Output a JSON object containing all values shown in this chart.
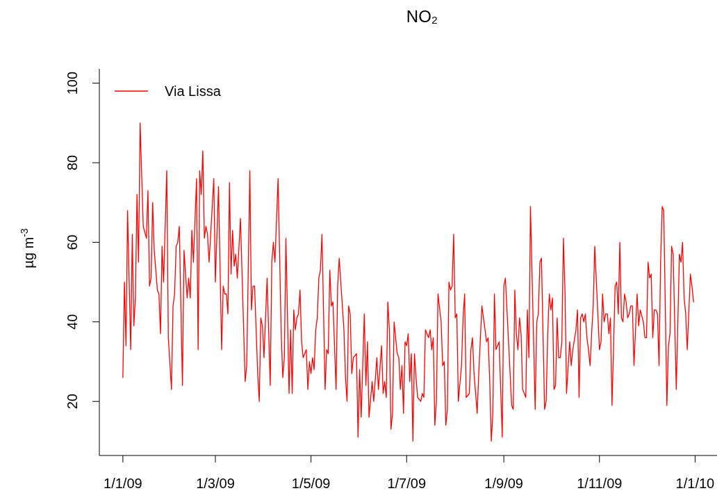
{
  "chart_data": {
    "type": "line",
    "title": "NO₂",
    "ylabel": "µg m$^{-3}$",
    "x": [
      "2009-01-01",
      "2009-01-02",
      "2009-01-03",
      "2009-01-04",
      "2009-01-06",
      "2009-01-07",
      "2009-01-08",
      "2009-01-09",
      "2009-01-10",
      "2009-01-11",
      "2009-01-12",
      "2009-01-14",
      "2009-01-16",
      "2009-01-17",
      "2009-01-18",
      "2009-01-19",
      "2009-01-20",
      "2009-01-21",
      "2009-01-23",
      "2009-01-24",
      "2009-01-25",
      "2009-01-26",
      "2009-01-27",
      "2009-01-29",
      "2009-01-30",
      "2009-02-01",
      "2009-02-02",
      "2009-02-03",
      "2009-02-04",
      "2009-02-05",
      "2009-02-06",
      "2009-02-08",
      "2009-02-09",
      "2009-02-11",
      "2009-02-12",
      "2009-02-13",
      "2009-02-14",
      "2009-02-15",
      "2009-02-17",
      "2009-02-18",
      "2009-02-19",
      "2009-02-20",
      "2009-02-21",
      "2009-02-22",
      "2009-02-23",
      "2009-02-24",
      "2009-02-25",
      "2009-02-28",
      "2009-03-01",
      "2009-03-03",
      "2009-03-05",
      "2009-03-06",
      "2009-03-07",
      "2009-03-08",
      "2009-03-09",
      "2009-03-10",
      "2009-03-11",
      "2009-03-12",
      "2009-03-13",
      "2009-03-14",
      "2009-03-15",
      "2009-03-17",
      "2009-03-20",
      "2009-03-21",
      "2009-03-23",
      "2009-03-24",
      "2009-03-25",
      "2009-03-26",
      "2009-03-28",
      "2009-03-29",
      "2009-03-30",
      "2009-03-31",
      "2009-04-01",
      "2009-04-03",
      "2009-04-05",
      "2009-04-06",
      "2009-04-07",
      "2009-04-08",
      "2009-04-10",
      "2009-04-12",
      "2009-04-13",
      "2009-04-14",
      "2009-04-15",
      "2009-04-17",
      "2009-04-18",
      "2009-04-19",
      "2009-04-20",
      "2009-04-21",
      "2009-04-22",
      "2009-04-23",
      "2009-04-24",
      "2009-04-25",
      "2009-04-26",
      "2009-04-28",
      "2009-04-29",
      "2009-04-30",
      "2009-05-01",
      "2009-05-02",
      "2009-05-03",
      "2009-05-04",
      "2009-05-05",
      "2009-05-06",
      "2009-05-07",
      "2009-05-08",
      "2009-05-10",
      "2009-05-11",
      "2009-05-12",
      "2009-05-13",
      "2009-05-14",
      "2009-05-15",
      "2009-05-17",
      "2009-05-18",
      "2009-05-19",
      "2009-05-22",
      "2009-05-23",
      "2009-05-24",
      "2009-05-25",
      "2009-05-26",
      "2009-05-27",
      "2009-05-28",
      "2009-05-30",
      "2009-05-31",
      "2009-06-01",
      "2009-06-02",
      "2009-06-04",
      "2009-06-05",
      "2009-06-06",
      "2009-06-07",
      "2009-06-09",
      "2009-06-10",
      "2009-06-12",
      "2009-06-13",
      "2009-06-15",
      "2009-06-16",
      "2009-06-17",
      "2009-06-18",
      "2009-06-19",
      "2009-06-20",
      "2009-06-21",
      "2009-06-22",
      "2009-06-23",
      "2009-06-25",
      "2009-06-26",
      "2009-06-27",
      "2009-06-28",
      "2009-06-29",
      "2009-06-30",
      "2009-07-01",
      "2009-07-02",
      "2009-07-03",
      "2009-07-04",
      "2009-07-05",
      "2009-07-06",
      "2009-07-07",
      "2009-07-08",
      "2009-07-10",
      "2009-07-11",
      "2009-07-12",
      "2009-07-13",
      "2009-07-15",
      "2009-07-16",
      "2009-07-17",
      "2009-07-18",
      "2009-07-19",
      "2009-07-20",
      "2009-07-21",
      "2009-07-23",
      "2009-07-24",
      "2009-07-25",
      "2009-07-26",
      "2009-07-27",
      "2009-07-28",
      "2009-07-29",
      "2009-07-30",
      "2009-07-31",
      "2009-08-01",
      "2009-08-02",
      "2009-08-03",
      "2009-08-05",
      "2009-08-06",
      "2009-08-07",
      "2009-08-08",
      "2009-08-10",
      "2009-08-11",
      "2009-08-12",
      "2009-08-13",
      "2009-08-15",
      "2009-08-16",
      "2009-08-18",
      "2009-08-21",
      "2009-08-22",
      "2009-08-23",
      "2009-08-24",
      "2009-08-25",
      "2009-08-26",
      "2009-08-27",
      "2009-08-29",
      "2009-08-31",
      "2009-09-01",
      "2009-09-02",
      "2009-09-06",
      "2009-09-07",
      "2009-09-08",
      "2009-09-09",
      "2009-09-10",
      "2009-09-11",
      "2009-09-12",
      "2009-09-13",
      "2009-09-15",
      "2009-09-16",
      "2009-09-17",
      "2009-09-18",
      "2009-09-21",
      "2009-09-22",
      "2009-09-23",
      "2009-09-24",
      "2009-09-25",
      "2009-09-27",
      "2009-09-28",
      "2009-09-29",
      "2009-09-30",
      "2009-10-01",
      "2009-10-02",
      "2009-10-03",
      "2009-10-04",
      "2009-10-05",
      "2009-10-06",
      "2009-10-07",
      "2009-10-08",
      "2009-10-09",
      "2009-10-10",
      "2009-10-11",
      "2009-10-13",
      "2009-10-14",
      "2009-10-15",
      "2009-10-17",
      "2009-10-18",
      "2009-10-19",
      "2009-10-20",
      "2009-10-21",
      "2009-10-22",
      "2009-10-23",
      "2009-10-24",
      "2009-10-25",
      "2009-10-26",
      "2009-10-27",
      "2009-10-28",
      "2009-10-29",
      "2009-11-01",
      "2009-11-02",
      "2009-11-03",
      "2009-11-04",
      "2009-11-05",
      "2009-11-06",
      "2009-11-07",
      "2009-11-08",
      "2009-11-09",
      "2009-11-11",
      "2009-11-12",
      "2009-11-13",
      "2009-11-14",
      "2009-11-15",
      "2009-11-16",
      "2009-11-17",
      "2009-11-18",
      "2009-11-19",
      "2009-11-20",
      "2009-11-21",
      "2009-11-22",
      "2009-11-23",
      "2009-11-25",
      "2009-11-26",
      "2009-11-27",
      "2009-11-29",
      "2009-11-30",
      "2009-12-01",
      "2009-12-02",
      "2009-12-03",
      "2009-12-04",
      "2009-12-05",
      "2009-12-06",
      "2009-12-07",
      "2009-12-08",
      "2009-12-09",
      "2009-12-10",
      "2009-12-11",
      "2009-12-12",
      "2009-12-14",
      "2009-12-15",
      "2009-12-16",
      "2009-12-17",
      "2009-12-18",
      "2009-12-20",
      "2009-12-22",
      "2009-12-23",
      "2009-12-24",
      "2009-12-25",
      "2009-12-26",
      "2009-12-27",
      "2009-12-29",
      "2009-12-30",
      "2009-12-31"
    ],
    "series": [
      {
        "name": "Via Lissa",
        "color": "#ff0000",
        "values": [
          26,
          50,
          34,
          68,
          33,
          62,
          39,
          46,
          72,
          55,
          90,
          64,
          61,
          73,
          49,
          51,
          70,
          58,
          48,
          47,
          37,
          59,
          50,
          78,
          36,
          23,
          44,
          47,
          59,
          60,
          64,
          24,
          58,
          46,
          51,
          46,
          63,
          55,
          76,
          33,
          78,
          72,
          83,
          61,
          64,
          62,
          55,
          76,
          50,
          74,
          33,
          49,
          47,
          47,
          42,
          75,
          52,
          63,
          54,
          57,
          51,
          66,
          25,
          29,
          78,
          43,
          49,
          49,
          27,
          20,
          41,
          39,
          31,
          51,
          24,
          55,
          60,
          55,
          76,
          37,
          26,
          31,
          61,
          22,
          38,
          22,
          43,
          38,
          41,
          42,
          48,
          35,
          31,
          33,
          23,
          30,
          27,
          31,
          28,
          38,
          41,
          51,
          53,
          62,
          23,
          33,
          32,
          53,
          44,
          45,
          23,
          49,
          56,
          38,
          26,
          20,
          44,
          42,
          27,
          31,
          32,
          11,
          28,
          16,
          42,
          24,
          35,
          16,
          25,
          20,
          31,
          23,
          34,
          22,
          25,
          21,
          45,
          38,
          13,
          17,
          40,
          32,
          31,
          23,
          29,
          17,
          35,
          34,
          37,
          25,
          32,
          10,
          32,
          26,
          21,
          20,
          22,
          21,
          38,
          36,
          38,
          33,
          36,
          14,
          20,
          47,
          40,
          29,
          30,
          14,
          18,
          50,
          48,
          49,
          62,
          41,
          42,
          20,
          29,
          41,
          47,
          21,
          22,
          33,
          36,
          27,
          17,
          27,
          44,
          35,
          36,
          25,
          10,
          17,
          47,
          33,
          35,
          11,
          49,
          51,
          19,
          18,
          48,
          37,
          33,
          41,
          37,
          23,
          21,
          43,
          31,
          69,
          18,
          40,
          42,
          55,
          56,
          18,
          20,
          37,
          47,
          43,
          46,
          23,
          24,
          41,
          31,
          31,
          35,
          61,
          48,
          22,
          35,
          29,
          33,
          38,
          43,
          21,
          41,
          42,
          40,
          42,
          36,
          33,
          29,
          37,
          44,
          59,
          33,
          35,
          47,
          40,
          42,
          42,
          37,
          41,
          19,
          49,
          50,
          42,
          60,
          41,
          40,
          47,
          45,
          41,
          42,
          44,
          44,
          29,
          47,
          39,
          43,
          40,
          36,
          36,
          55,
          51,
          52,
          36,
          43,
          43,
          42,
          29,
          55,
          69,
          68,
          19,
          34,
          37,
          59,
          57,
          23,
          57,
          55,
          60,
          46,
          42,
          33,
          52,
          49,
          45
        ]
      }
    ],
    "xlim": [
      "2008-12-17",
      "2010-01-15"
    ],
    "xticks": [
      {
        "value": "2009-01-01",
        "label": "1/1/09"
      },
      {
        "value": "2009-03-01",
        "label": "1/3/09"
      },
      {
        "value": "2009-05-01",
        "label": "1/5/09"
      },
      {
        "value": "2009-07-01",
        "label": "1/7/09"
      },
      {
        "value": "2009-09-01",
        "label": "1/9/09"
      },
      {
        "value": "2009-11-01",
        "label": "1/11/09"
      },
      {
        "value": "2010-01-01",
        "label": "1/1/10"
      }
    ],
    "ylim": [
      6.4,
      103.6
    ],
    "yticks": [
      20,
      40,
      60,
      80,
      100
    ],
    "legend": "top left",
    "grid": false
  }
}
